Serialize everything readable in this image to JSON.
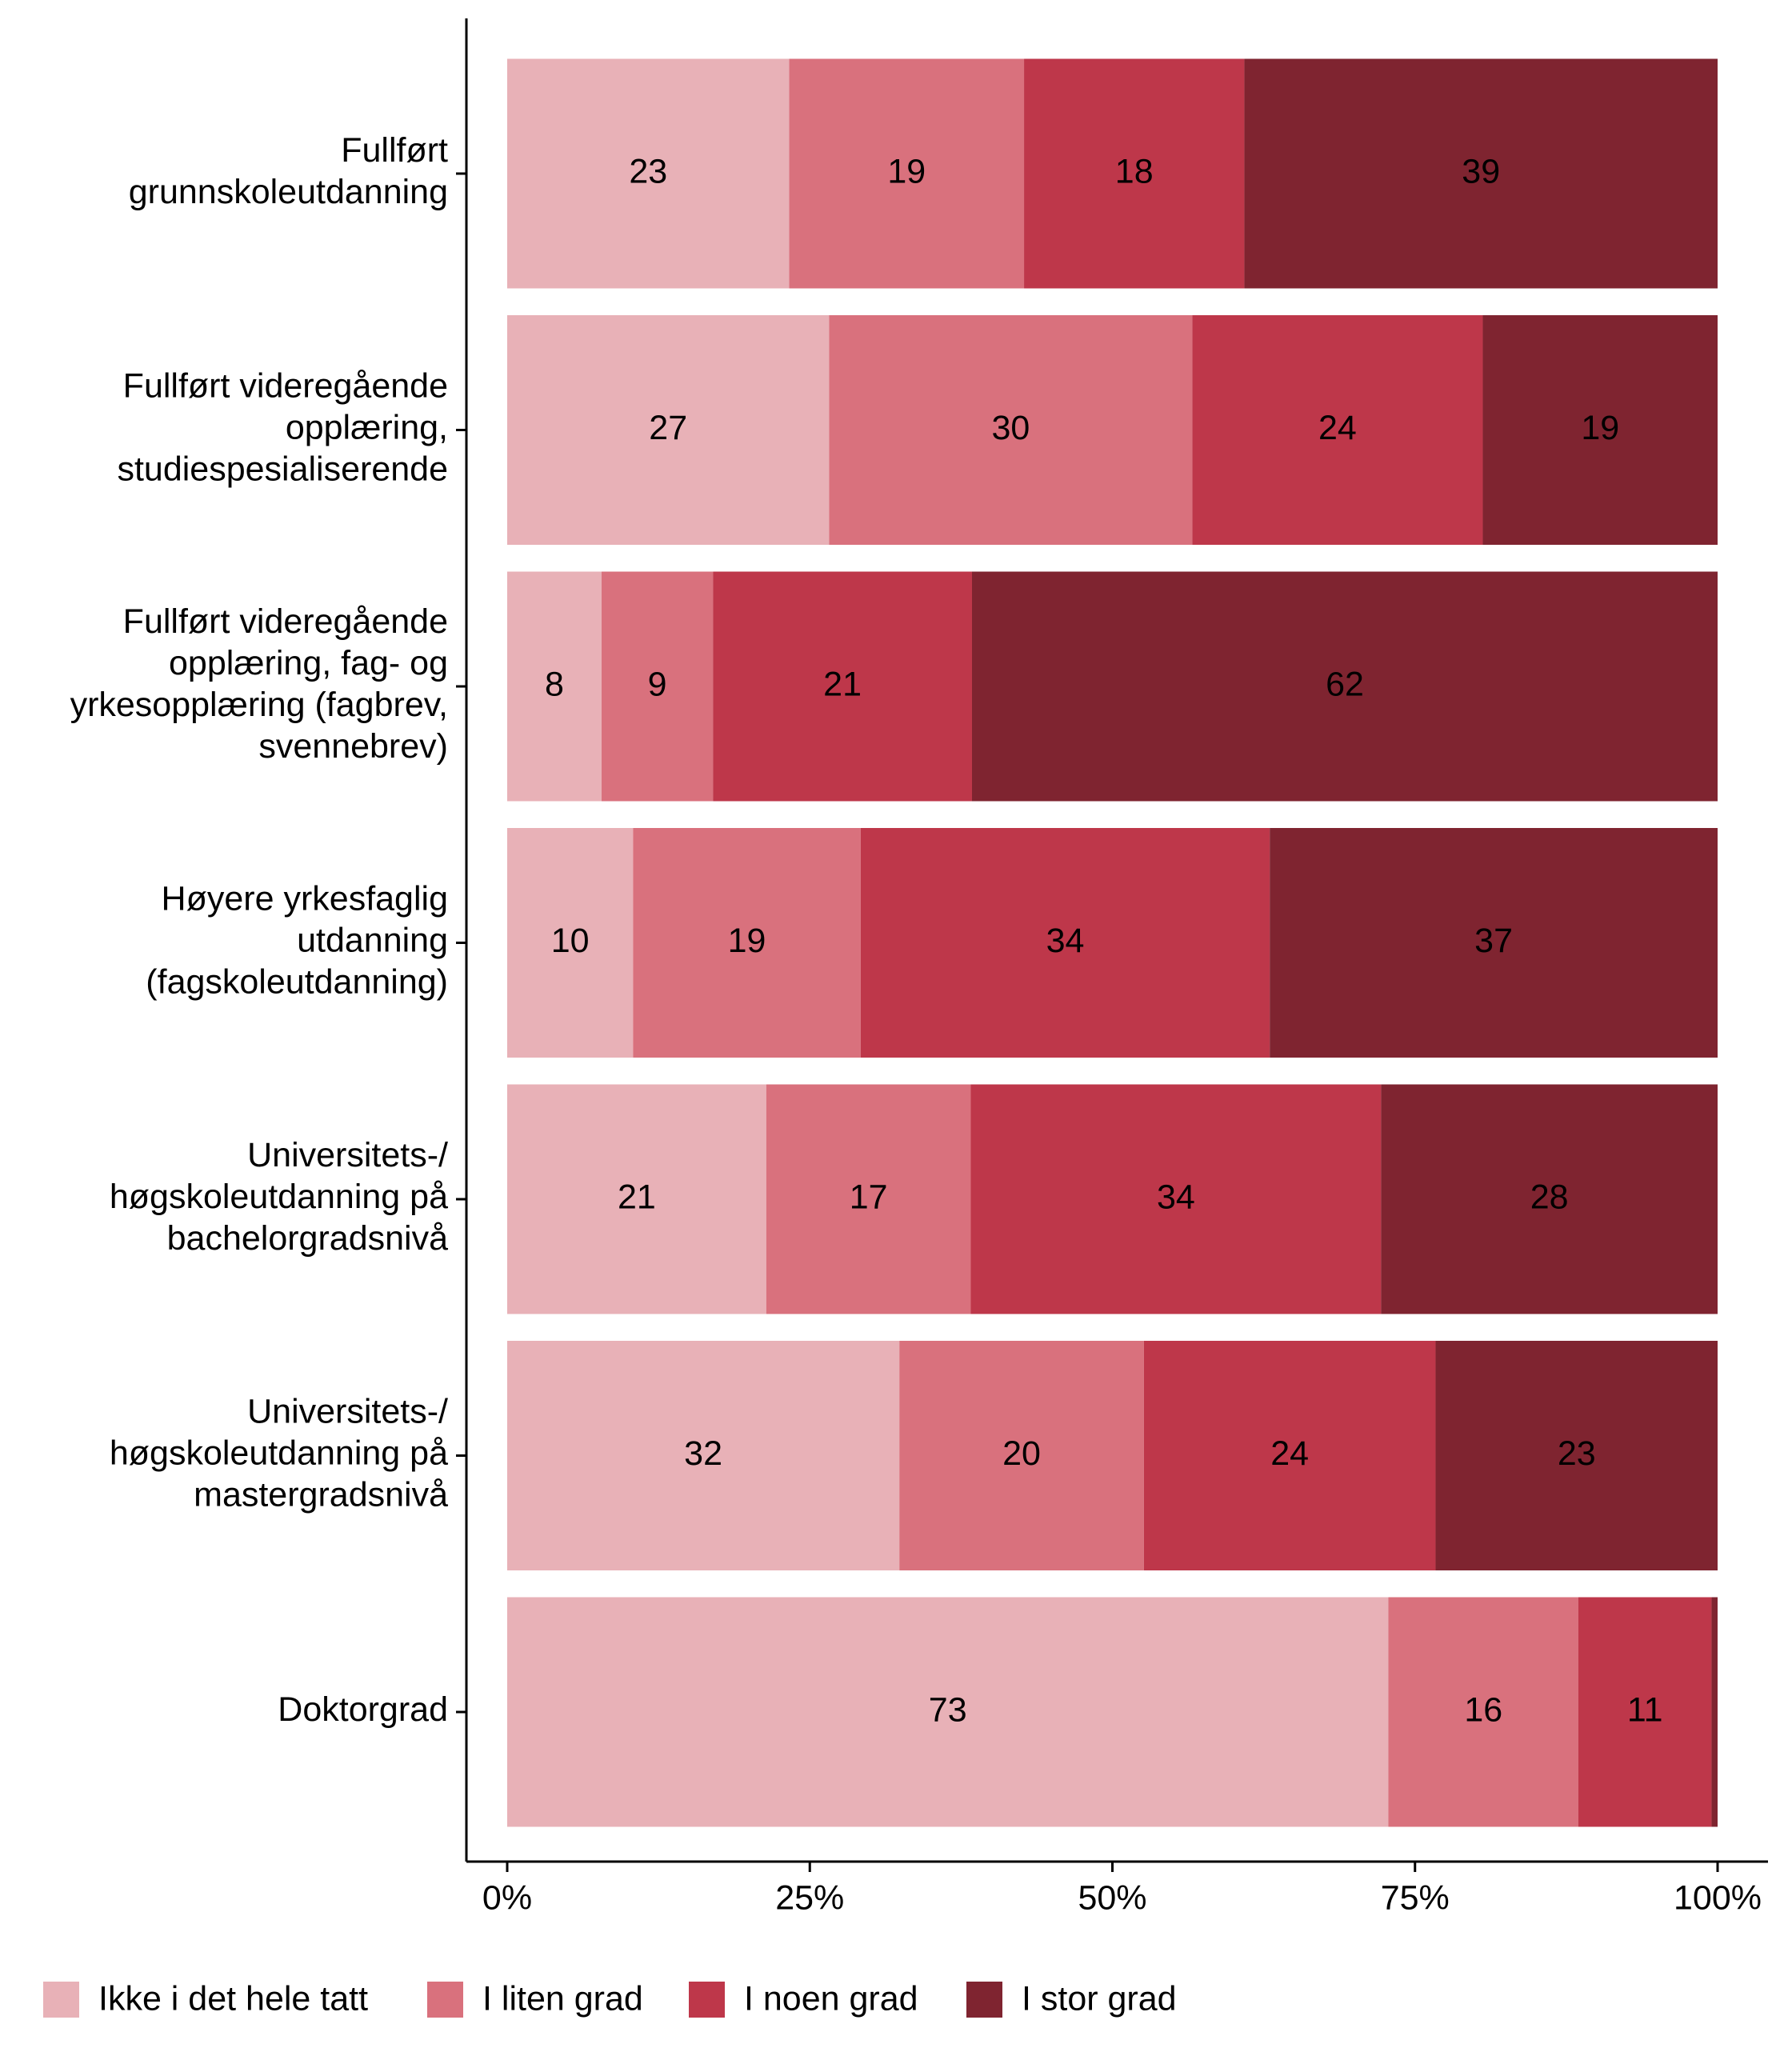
{
  "chart_data": {
    "type": "stacked-bar-horizontal",
    "categories": [
      "Fullført\ngrunnskoleutdanning",
      "Fullført videregående\nopplæring,\nstudiespesialiserende",
      "Fullført videregående\nopplæring, fag- og\nyrkesopplæring (fagbrev,\nsvennebrev)",
      "Høyere yrkesfaglig\nutdanning\n(fagskoleutdanning)",
      "Universitets-/\nhøgskoleutdanning på\nbachelorgradsnivå",
      "Universitets-/\nhøgskoleutdanning på\nmastergradsnivå",
      "Doktorgrad"
    ],
    "series": [
      {
        "name": "Ikke i det hele tatt",
        "color": "#e8b1b7",
        "label_color": "#000000",
        "values": [
          23.3,
          26.6,
          7.8,
          10.4,
          21.4,
          32.4,
          72.8
        ],
        "value_labels": [
          "23",
          "27",
          "8",
          "10",
          "21",
          "32",
          "73"
        ]
      },
      {
        "name": "I liten grad",
        "color": "#d9717d",
        "label_color": "#000000",
        "values": [
          19.4,
          30.0,
          9.2,
          18.8,
          16.9,
          20.2,
          15.7
        ],
        "value_labels": [
          "19",
          "30",
          "9",
          "19",
          "17",
          "20",
          "16"
        ]
      },
      {
        "name": "I noen grad",
        "color": "#be374a",
        "label_color": "#ffffff",
        "values": [
          18.2,
          24.0,
          21.4,
          33.8,
          33.9,
          24.1,
          11.0
        ],
        "value_labels": [
          "18",
          "24",
          "21",
          "34",
          "34",
          "24",
          "11"
        ]
      },
      {
        "name": "I stor grad",
        "color": "#7f2430",
        "label_color": "#ffffff",
        "values": [
          39.1,
          19.4,
          61.6,
          37.0,
          27.8,
          23.3,
          0.5
        ],
        "value_labels": [
          "39",
          "19",
          "62",
          "37",
          "28",
          "23",
          null
        ]
      }
    ],
    "xlim": [
      0,
      100
    ],
    "xticks": [
      {
        "value": 0,
        "label": "0%"
      },
      {
        "value": 25,
        "label": "25%"
      },
      {
        "value": 50,
        "label": "50%"
      },
      {
        "value": 75,
        "label": "75%"
      },
      {
        "value": 100,
        "label": "100%"
      }
    ],
    "legend": "bottom"
  }
}
